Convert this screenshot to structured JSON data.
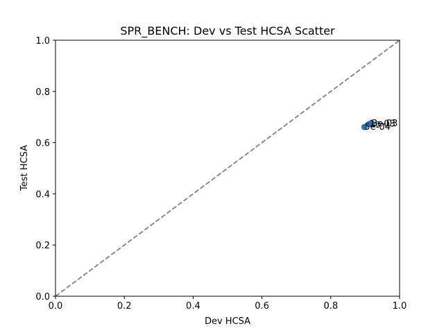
{
  "chart_data": {
    "type": "scatter",
    "title": "SPR_BENCH: Dev vs Test HCSA Scatter",
    "xlabel": "Dev HCSA",
    "ylabel": "Test HCSA",
    "xlim": [
      0,
      1
    ],
    "ylim": [
      0,
      1
    ],
    "xticks": [
      "0.0",
      "0.2",
      "0.4",
      "0.6",
      "0.8",
      "1.0"
    ],
    "yticks": [
      "0.0",
      "0.2",
      "0.4",
      "0.6",
      "0.8",
      "1.0"
    ],
    "grid": false,
    "reference_line": {
      "style": "dashed",
      "from": [
        0,
        0
      ],
      "to": [
        1,
        1
      ],
      "color": "#808080"
    },
    "marker_color": "#1f77b4",
    "points": [
      {
        "x": 0.898,
        "y": 0.661,
        "label": "5e-04"
      },
      {
        "x": 0.912,
        "y": 0.673,
        "label": "1e-03"
      },
      {
        "x": 0.919,
        "y": 0.675,
        "label": "3e-03"
      }
    ]
  }
}
